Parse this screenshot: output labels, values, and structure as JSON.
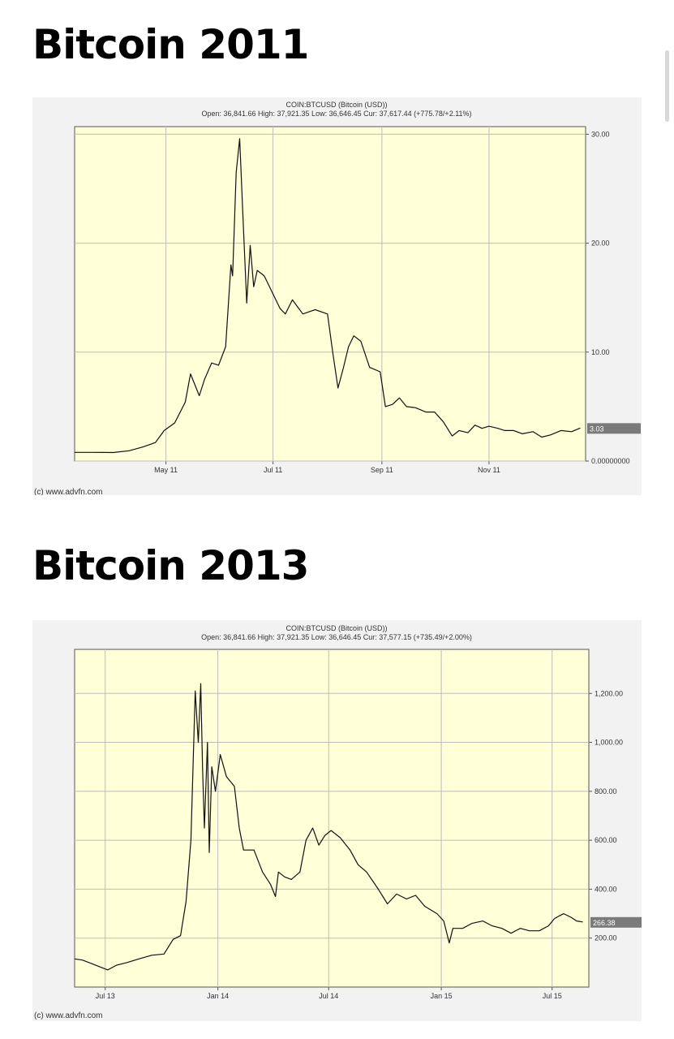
{
  "page": {
    "heading1": "Bitcoin 2011",
    "heading2": "Bitcoin 2013"
  },
  "chart_data": [
    {
      "type": "line",
      "title": "COIN:BTCUSD (Bitcoin (USD))",
      "subtitle": "Open: 36,841.66 High: 37,921.35 Low: 36,646.45 Cur: 37,617.44 (+775.78/+2.11%)",
      "credit": "(c) www.advfn.com",
      "x_tick_labels": [
        "May 11",
        "Jul 11",
        "Sep 11",
        "Nov 11"
      ],
      "y_tick_labels": [
        "0.00000000",
        "10.00",
        "20.00",
        "30.00"
      ],
      "y_ticks": [
        0,
        10,
        20,
        30
      ],
      "ylim": [
        0,
        30.7
      ],
      "xlim": [
        "2011-03-10",
        "2011-12-26"
      ],
      "x_ticks": [
        "2011-05-01",
        "2011-07-01",
        "2011-09-01",
        "2011-11-01"
      ],
      "grid": true,
      "last_value_label": "3.03",
      "series": [
        {
          "x": [
            "2011-03-10",
            "2011-03-20",
            "2011-04-01",
            "2011-04-10",
            "2011-04-18",
            "2011-04-25",
            "2011-04-30",
            "2011-05-06",
            "2011-05-12",
            "2011-05-15",
            "2011-05-20",
            "2011-05-23",
            "2011-05-27",
            "2011-05-31",
            "2011-06-04",
            "2011-06-07",
            "2011-06-08",
            "2011-06-10",
            "2011-06-12",
            "2011-06-14",
            "2011-06-16",
            "2011-06-18",
            "2011-06-20",
            "2011-06-22",
            "2011-06-26",
            "2011-07-05",
            "2011-07-08",
            "2011-07-12",
            "2011-07-18",
            "2011-07-25",
            "2011-08-01",
            "2011-08-04",
            "2011-08-07",
            "2011-08-10",
            "2011-08-13",
            "2011-08-16",
            "2011-08-20",
            "2011-08-25",
            "2011-08-31",
            "2011-09-03",
            "2011-09-07",
            "2011-09-11",
            "2011-09-15",
            "2011-09-20",
            "2011-09-26",
            "2011-10-01",
            "2011-10-06",
            "2011-10-11",
            "2011-10-15",
            "2011-10-20",
            "2011-10-24",
            "2011-10-28",
            "2011-11-01",
            "2011-11-06",
            "2011-11-10",
            "2011-11-15",
            "2011-11-20",
            "2011-11-26",
            "2011-12-01",
            "2011-12-06",
            "2011-12-12",
            "2011-12-18",
            "2011-12-23"
          ],
          "y": [
            0.8,
            0.8,
            0.78,
            0.95,
            1.3,
            1.7,
            2.8,
            3.5,
            5.4,
            8.0,
            6.0,
            7.5,
            9.0,
            8.8,
            10.5,
            18.0,
            17.0,
            26.5,
            29.6,
            22.0,
            14.5,
            19.8,
            16.0,
            17.5,
            17.0,
            14.0,
            13.5,
            14.8,
            13.5,
            13.9,
            13.5,
            10.0,
            6.7,
            8.5,
            10.5,
            11.5,
            11.0,
            8.6,
            8.2,
            5.0,
            5.2,
            5.8,
            5.0,
            4.9,
            4.5,
            4.5,
            3.6,
            2.3,
            2.8,
            2.6,
            3.3,
            3.0,
            3.2,
            3.0,
            2.8,
            2.8,
            2.5,
            2.7,
            2.2,
            2.4,
            2.8,
            2.7,
            3.03
          ]
        }
      ]
    },
    {
      "type": "line",
      "title": "COIN:BTCUSD (Bitcoin (USD))",
      "subtitle": "Open: 36,841.66 High: 37,921.35 Low: 36,646.45 Cur: 37,577.15 (+735.49/+2.00%)",
      "credit": "(c) www.advfn.com",
      "x_tick_labels": [
        "Jul 13",
        "Jan 14",
        "Jul 14",
        "Jan 15",
        "Jul 15"
      ],
      "y_tick_labels": [
        "200.00",
        "400.00",
        "600.00",
        "800.00",
        "1,000.00",
        "1,200.00"
      ],
      "y_ticks": [
        200,
        400,
        600,
        800,
        1000,
        1200
      ],
      "ylim": [
        0,
        1380
      ],
      "xlim": [
        "2013-05-12",
        "2015-08-30"
      ],
      "x_ticks": [
        "2013-07-01",
        "2014-01-01",
        "2014-07-01",
        "2015-01-01",
        "2015-07-01"
      ],
      "grid": true,
      "last_value_label": "266.38",
      "series": [
        {
          "x": [
            "2013-05-12",
            "2013-05-25",
            "2013-06-10",
            "2013-06-25",
            "2013-07-05",
            "2013-07-20",
            "2013-08-05",
            "2013-08-25",
            "2013-09-15",
            "2013-10-05",
            "2013-10-20",
            "2013-11-01",
            "2013-11-10",
            "2013-11-18",
            "2013-11-25",
            "2013-11-30",
            "2013-12-04",
            "2013-12-07",
            "2013-12-10",
            "2013-12-15",
            "2013-12-18",
            "2013-12-22",
            "2013-12-28",
            "2014-01-05",
            "2014-01-15",
            "2014-01-28",
            "2014-02-05",
            "2014-02-12",
            "2014-02-20",
            "2014-03-01",
            "2014-03-15",
            "2014-03-28",
            "2014-04-05",
            "2014-04-10",
            "2014-04-20",
            "2014-05-01",
            "2014-05-15",
            "2014-05-25",
            "2014-06-05",
            "2014-06-15",
            "2014-06-25",
            "2014-07-05",
            "2014-07-20",
            "2014-08-05",
            "2014-08-18",
            "2014-09-01",
            "2014-09-20",
            "2014-10-05",
            "2014-10-20",
            "2014-11-05",
            "2014-11-20",
            "2014-12-05",
            "2014-12-25",
            "2015-01-05",
            "2015-01-14",
            "2015-01-20",
            "2015-02-05",
            "2015-02-20",
            "2015-03-10",
            "2015-03-25",
            "2015-04-10",
            "2015-04-25",
            "2015-05-10",
            "2015-05-25",
            "2015-06-10",
            "2015-06-25",
            "2015-07-05",
            "2015-07-12",
            "2015-07-20",
            "2015-08-01",
            "2015-08-10",
            "2015-08-20"
          ],
          "y": [
            115,
            110,
            95,
            80,
            70,
            90,
            100,
            115,
            130,
            135,
            195,
            210,
            350,
            600,
            1210,
            1000,
            1240,
            900,
            650,
            1000,
            550,
            900,
            800,
            950,
            860,
            820,
            650,
            560,
            560,
            560,
            470,
            420,
            370,
            470,
            450,
            440,
            470,
            600,
            650,
            580,
            620,
            640,
            610,
            560,
            500,
            470,
            400,
            340,
            380,
            360,
            375,
            330,
            300,
            270,
            180,
            240,
            240,
            260,
            270,
            250,
            240,
            220,
            240,
            230,
            230,
            250,
            280,
            290,
            300,
            285,
            270,
            266
          ]
        }
      ]
    }
  ]
}
